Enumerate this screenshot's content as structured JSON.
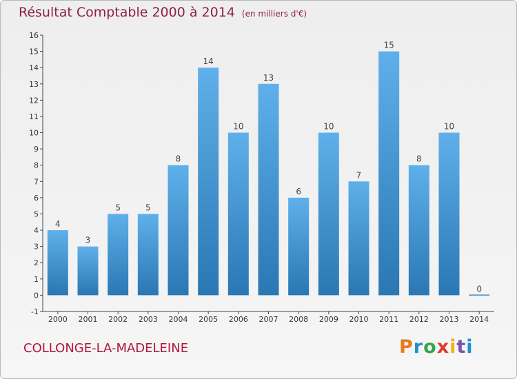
{
  "title": "Résultat Comptable 2000 à 2014",
  "unit": "(en milliers d'€)",
  "city": "COLLONGE-LA-MADELEINE",
  "brand": {
    "letters": [
      "P",
      "r",
      "o",
      "x",
      "i",
      "t",
      "i"
    ],
    "colors": [
      "#e87b1a",
      "#1f8fd0",
      "#2ea64a",
      "#e13a2f",
      "#f0b21a",
      "#7a52b3",
      "#1f8fd0"
    ]
  },
  "colors": {
    "bar_light": "#5fb0ea",
    "bar_dark": "#2a77b3",
    "title": "#8e1f4b",
    "city": "#b0163f"
  },
  "chart_data": {
    "type": "bar",
    "title": "Résultat Comptable 2000 à 2014",
    "subtitle": "(en milliers d'€)",
    "categories": [
      "2000",
      "2001",
      "2002",
      "2003",
      "2004",
      "2005",
      "2006",
      "2007",
      "2008",
      "2009",
      "2010",
      "2011",
      "2012",
      "2013",
      "2014"
    ],
    "values": [
      4,
      3,
      5,
      5,
      8,
      14,
      10,
      13,
      6,
      10,
      7,
      15,
      8,
      10,
      0
    ],
    "ylim": [
      -1,
      16
    ],
    "yticks": [
      -1,
      0,
      1,
      2,
      3,
      4,
      5,
      6,
      7,
      8,
      9,
      10,
      11,
      12,
      13,
      14,
      15,
      16
    ],
    "grid": false,
    "legend": "none"
  }
}
